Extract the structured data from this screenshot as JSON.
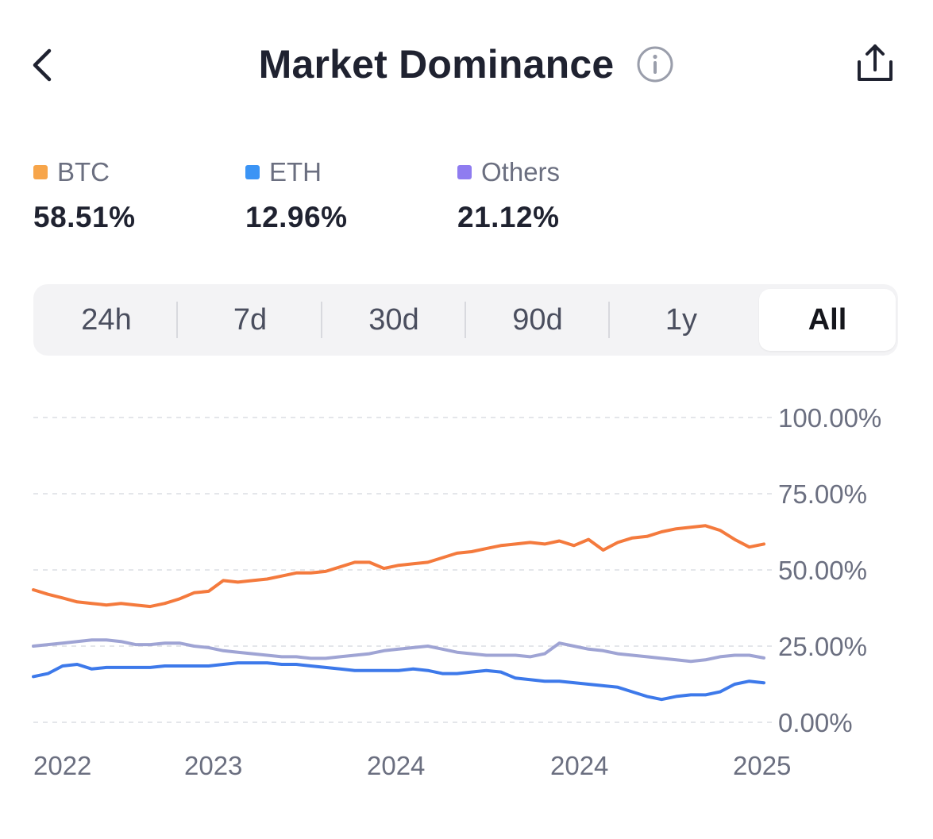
{
  "header": {
    "title": "Market Dominance",
    "back_icon": "chevron-left-icon",
    "info_icon": "info-circle-icon",
    "share_icon": "share-icon"
  },
  "legend": [
    {
      "label": "BTC",
      "value": "58.51%",
      "color": "#F7A54A"
    },
    {
      "label": "ETH",
      "value": "12.96%",
      "color": "#3B94F5"
    },
    {
      "label": "Others",
      "value": "21.12%",
      "color": "#8F7CF0"
    }
  ],
  "ranges": {
    "items": [
      "24h",
      "7d",
      "30d",
      "90d",
      "1y",
      "All"
    ],
    "selected": "All"
  },
  "chart_data": {
    "type": "line",
    "title": "",
    "xlabel": "",
    "ylabel": "",
    "x_tick_labels": [
      "2022",
      "2023",
      "2024",
      "2024",
      "2025"
    ],
    "y_tick_labels": [
      "100.00%",
      "75.00%",
      "50.00%",
      "25.00%",
      "0.00%"
    ],
    "ylim": [
      0,
      100
    ],
    "grid": true,
    "y_axis_position": "right",
    "x": [
      0,
      2,
      4,
      6,
      8,
      10,
      12,
      14,
      16,
      18,
      20,
      22,
      24,
      26,
      28,
      30,
      32,
      34,
      36,
      38,
      40,
      42,
      44,
      46,
      48,
      50,
      52,
      54,
      56,
      58,
      60,
      62,
      64,
      66,
      68,
      70,
      72,
      74,
      76,
      78,
      80,
      82,
      84,
      86,
      88,
      90,
      92,
      94,
      96,
      98,
      100
    ],
    "series": [
      {
        "name": "BTC",
        "color": "#F47A3D",
        "values": [
          43.5,
          42.0,
          40.8,
          39.5,
          39.0,
          38.5,
          39.0,
          38.5,
          38.0,
          39.0,
          40.5,
          42.5,
          43.0,
          46.5,
          46.0,
          46.5,
          47.0,
          48.0,
          49.0,
          49.0,
          49.5,
          51.0,
          52.5,
          52.5,
          50.5,
          51.5,
          52.0,
          52.5,
          54.0,
          55.5,
          56.0,
          57.0,
          58.0,
          58.5,
          59.0,
          58.5,
          59.5,
          58.0,
          60.0,
          56.5,
          59.0,
          60.5,
          61.0,
          62.5,
          63.5,
          64.0,
          64.5,
          63.0,
          60.0,
          57.5,
          58.5
        ]
      },
      {
        "name": "ETH",
        "color": "#3D79EA",
        "values": [
          15.0,
          16.0,
          18.5,
          19.0,
          17.5,
          18.0,
          18.0,
          18.0,
          18.0,
          18.5,
          18.5,
          18.5,
          18.5,
          19.0,
          19.5,
          19.5,
          19.5,
          19.0,
          19.0,
          18.5,
          18.0,
          17.5,
          17.0,
          17.0,
          17.0,
          17.0,
          17.5,
          17.0,
          16.0,
          16.0,
          16.5,
          17.0,
          16.5,
          14.5,
          14.0,
          13.5,
          13.5,
          13.0,
          12.5,
          12.0,
          11.5,
          10.0,
          8.5,
          7.5,
          8.5,
          9.0,
          9.0,
          10.0,
          12.5,
          13.5,
          12.96
        ]
      },
      {
        "name": "Others",
        "color": "#9FA4D4",
        "values": [
          25.0,
          25.5,
          26.0,
          26.5,
          27.0,
          27.0,
          26.5,
          25.5,
          25.5,
          26.0,
          26.0,
          25.0,
          24.5,
          23.5,
          23.0,
          22.5,
          22.0,
          21.5,
          21.5,
          21.0,
          21.0,
          21.5,
          22.0,
          22.5,
          23.5,
          24.0,
          24.5,
          25.0,
          24.0,
          23.0,
          22.5,
          22.0,
          22.0,
          22.0,
          21.5,
          22.5,
          26.0,
          25.0,
          24.0,
          23.5,
          22.5,
          22.0,
          21.5,
          21.0,
          20.5,
          20.0,
          20.5,
          21.5,
          22.0,
          22.0,
          21.12
        ]
      }
    ]
  }
}
